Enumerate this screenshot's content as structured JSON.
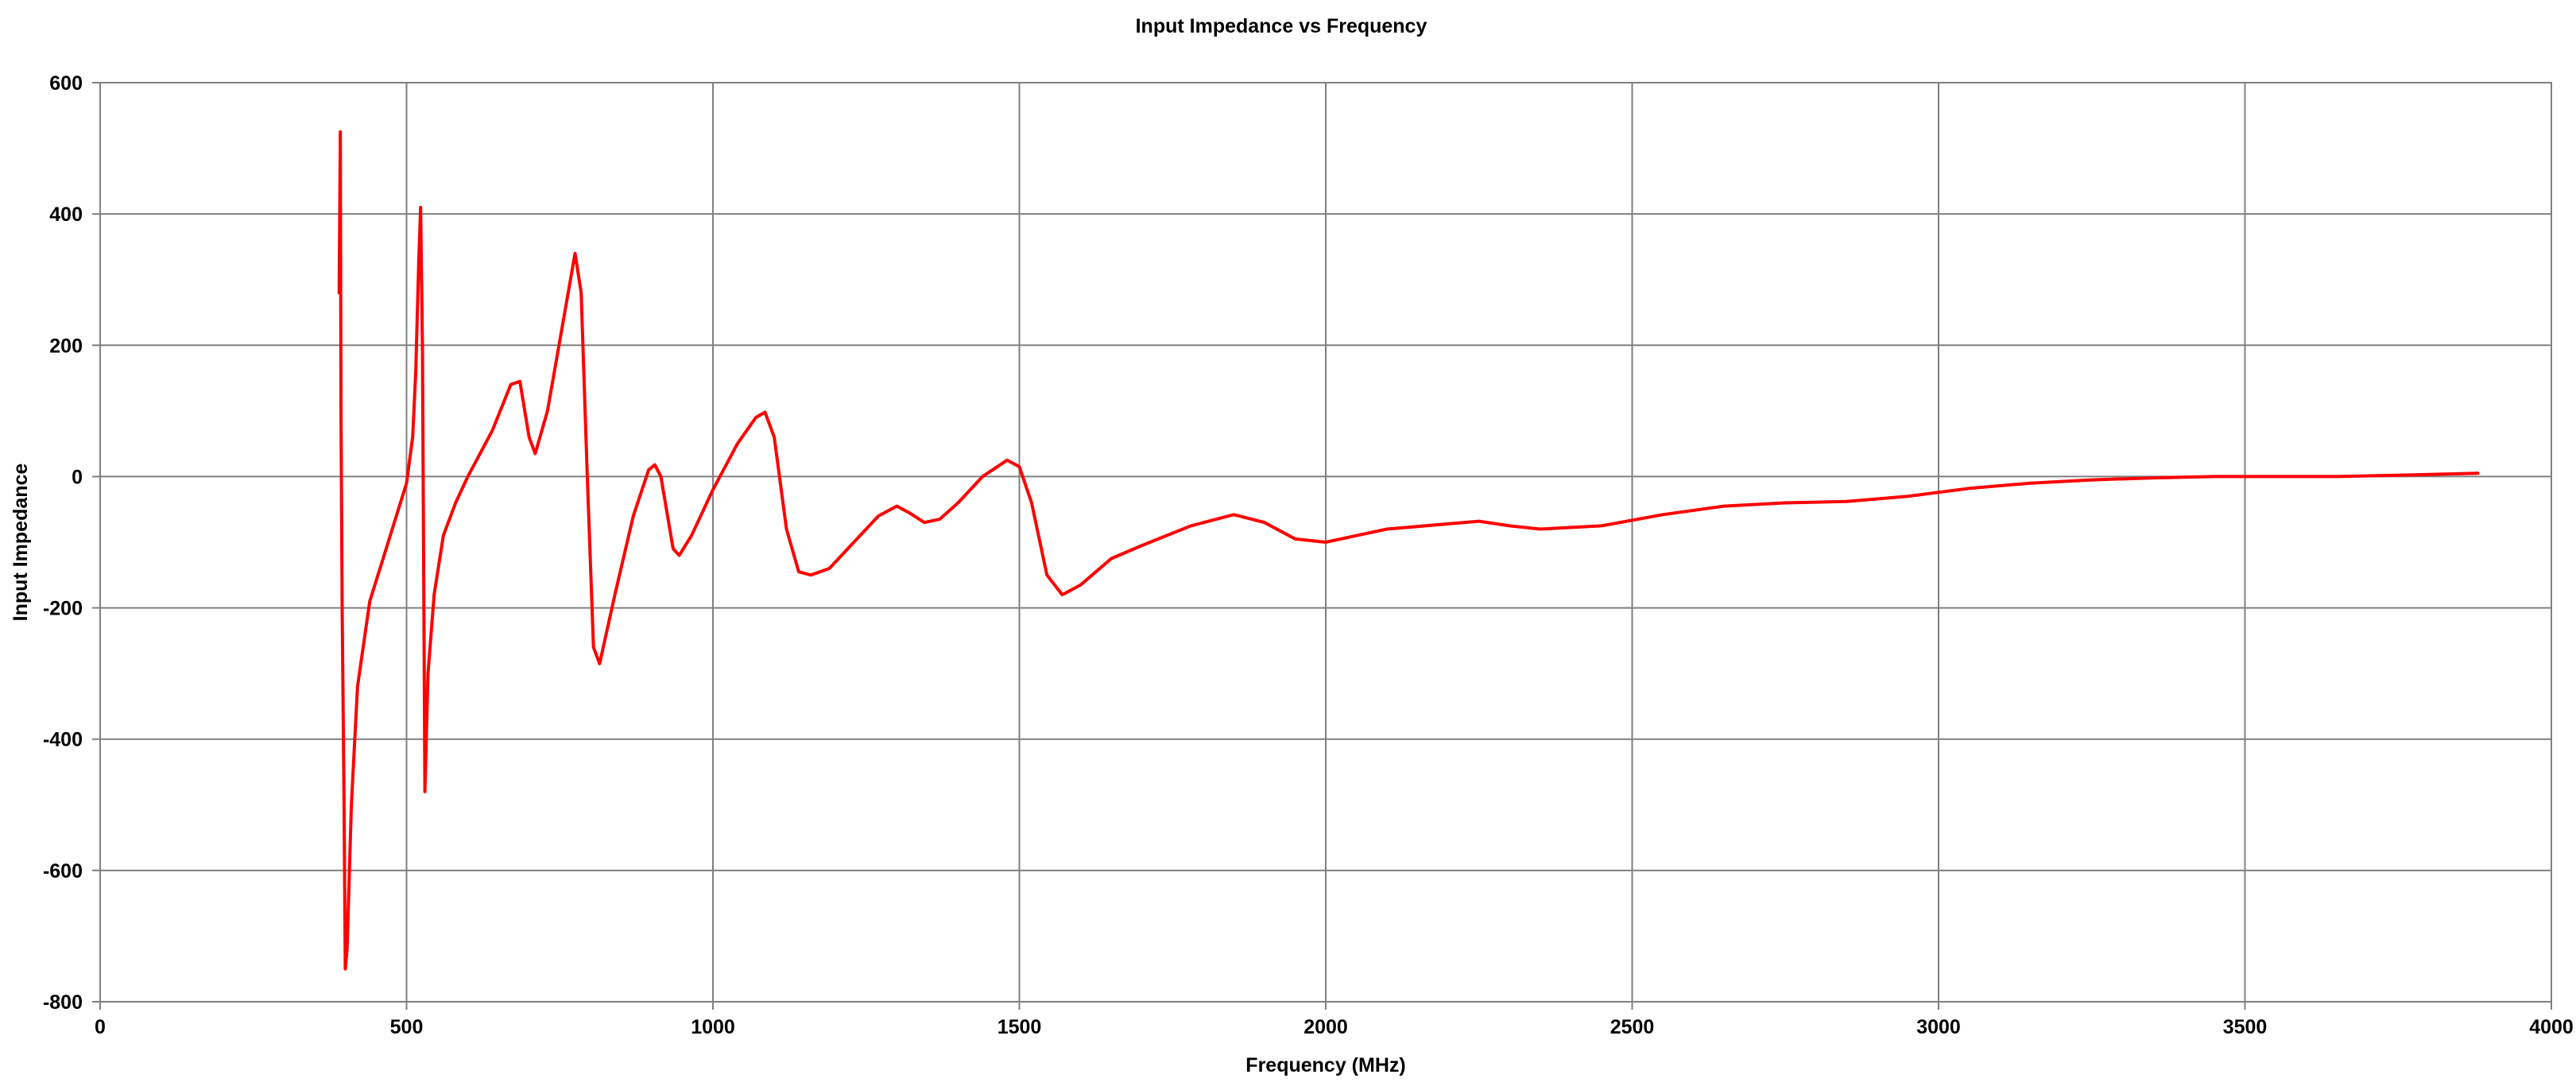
{
  "chart_data": {
    "type": "line",
    "title": "Input Impedance vs Frequency",
    "xlabel": "Frequency (MHz)",
    "ylabel": "Input Impedance",
    "xlim": [
      0,
      4000
    ],
    "ylim": [
      -800,
      600
    ],
    "xticks": [
      0,
      500,
      1000,
      1500,
      2000,
      2500,
      3000,
      3500,
      4000
    ],
    "yticks": [
      -800,
      -600,
      -400,
      -200,
      0,
      200,
      400,
      600
    ],
    "grid": true,
    "legend": "none",
    "line_color": "#ff0000",
    "series": [
      {
        "color": "#ff0000",
        "points": [
          [
            390,
            280
          ],
          [
            392,
            525
          ],
          [
            393,
            100
          ],
          [
            395,
            -200
          ],
          [
            398,
            -500
          ],
          [
            400,
            -750
          ],
          [
            403,
            -720
          ],
          [
            410,
            -500
          ],
          [
            420,
            -320
          ],
          [
            440,
            -190
          ],
          [
            460,
            -130
          ],
          [
            480,
            -70
          ],
          [
            500,
            -10
          ],
          [
            510,
            60
          ],
          [
            515,
            160
          ],
          [
            520,
            330
          ],
          [
            523,
            410
          ],
          [
            526,
            200
          ],
          [
            530,
            -480
          ],
          [
            535,
            -300
          ],
          [
            545,
            -180
          ],
          [
            560,
            -90
          ],
          [
            580,
            -40
          ],
          [
            600,
            0
          ],
          [
            640,
            70
          ],
          [
            670,
            140
          ],
          [
            685,
            145
          ],
          [
            700,
            60
          ],
          [
            710,
            35
          ],
          [
            730,
            100
          ],
          [
            760,
            260
          ],
          [
            775,
            340
          ],
          [
            785,
            280
          ],
          [
            795,
            0
          ],
          [
            805,
            -260
          ],
          [
            815,
            -285
          ],
          [
            840,
            -180
          ],
          [
            870,
            -60
          ],
          [
            895,
            10
          ],
          [
            905,
            18
          ],
          [
            915,
            0
          ],
          [
            935,
            -110
          ],
          [
            945,
            -120
          ],
          [
            965,
            -90
          ],
          [
            1000,
            -20
          ],
          [
            1040,
            50
          ],
          [
            1070,
            90
          ],
          [
            1085,
            98
          ],
          [
            1100,
            60
          ],
          [
            1120,
            -80
          ],
          [
            1140,
            -145
          ],
          [
            1160,
            -150
          ],
          [
            1190,
            -140
          ],
          [
            1230,
            -100
          ],
          [
            1270,
            -60
          ],
          [
            1300,
            -45
          ],
          [
            1320,
            -55
          ],
          [
            1345,
            -70
          ],
          [
            1370,
            -65
          ],
          [
            1400,
            -40
          ],
          [
            1440,
            0
          ],
          [
            1480,
            25
          ],
          [
            1500,
            15
          ],
          [
            1520,
            -40
          ],
          [
            1545,
            -150
          ],
          [
            1570,
            -180
          ],
          [
            1600,
            -165
          ],
          [
            1650,
            -125
          ],
          [
            1700,
            -105
          ],
          [
            1780,
            -75
          ],
          [
            1850,
            -58
          ],
          [
            1900,
            -70
          ],
          [
            1950,
            -95
          ],
          [
            2000,
            -100
          ],
          [
            2050,
            -90
          ],
          [
            2100,
            -80
          ],
          [
            2200,
            -72
          ],
          [
            2250,
            -68
          ],
          [
            2300,
            -75
          ],
          [
            2350,
            -80
          ],
          [
            2450,
            -75
          ],
          [
            2550,
            -58
          ],
          [
            2650,
            -45
          ],
          [
            2750,
            -40
          ],
          [
            2850,
            -38
          ],
          [
            2950,
            -30
          ],
          [
            3050,
            -18
          ],
          [
            3150,
            -10
          ],
          [
            3250,
            -5
          ],
          [
            3350,
            -2
          ],
          [
            3450,
            0
          ],
          [
            3550,
            0
          ],
          [
            3650,
            0
          ],
          [
            3750,
            2
          ],
          [
            3880,
            5
          ]
        ]
      }
    ]
  }
}
